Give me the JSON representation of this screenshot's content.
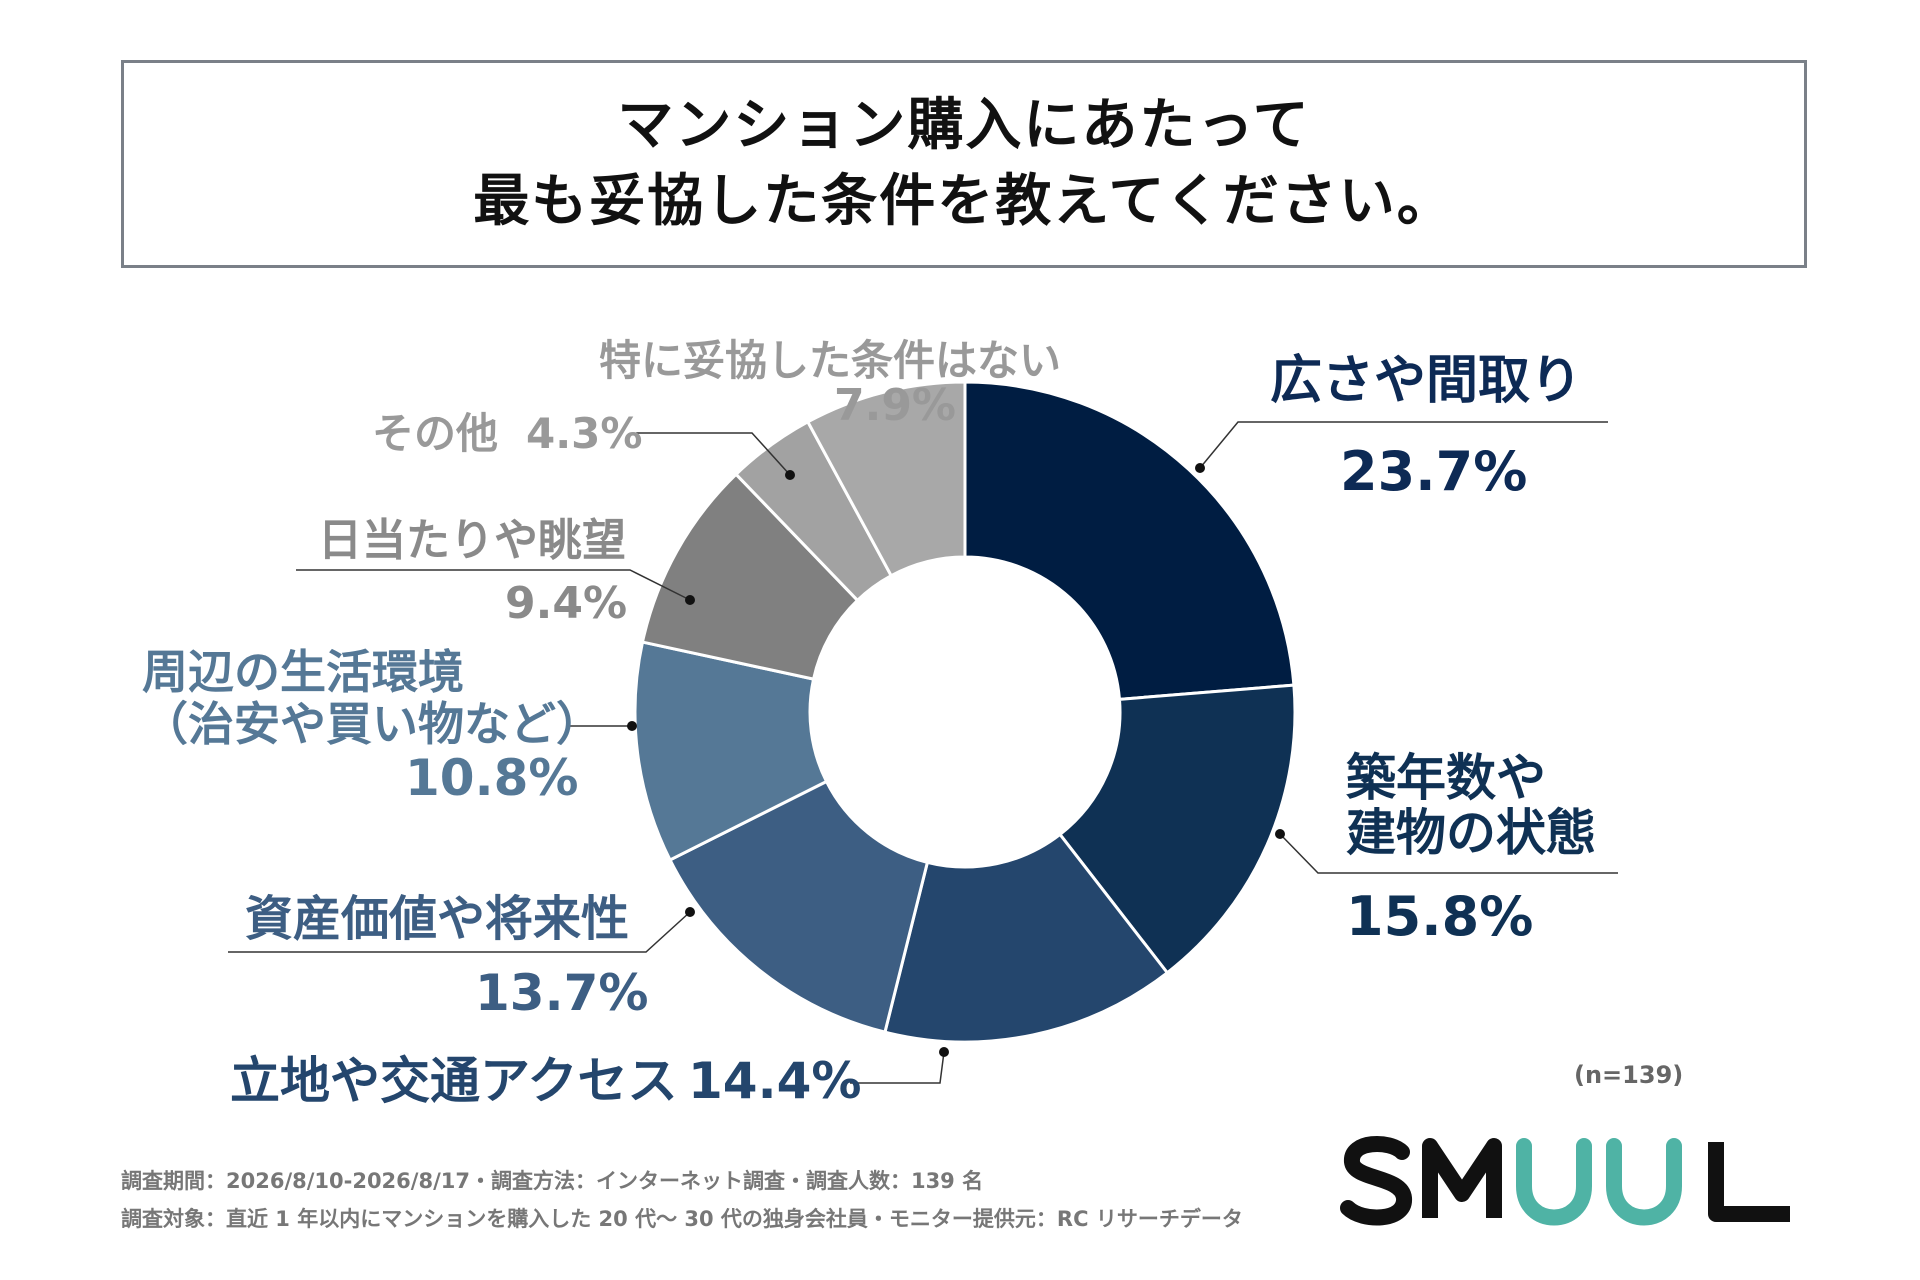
{
  "title": {
    "line1": "マンション購入にあたって",
    "line2": "最も妥協した条件を教えてください。"
  },
  "chart_data": {
    "type": "pie",
    "title": "マンション購入にあたって 最も妥協した条件を教えてください。",
    "unit": "%",
    "slices": [
      {
        "label": "広さや間取り",
        "label_lines": [
          "広さや間取り"
        ],
        "value": 23.7,
        "value_text": "23.7%",
        "color": "#001d42",
        "label_color": "#0d2a55"
      },
      {
        "label": "築年数や建物の状態",
        "label_lines": [
          "築年数や",
          "建物の状態"
        ],
        "value": 15.8,
        "value_text": "15.8%",
        "color": "#0f3154",
        "label_color": "#0f3154"
      },
      {
        "label": "立地や交通アクセス",
        "label_lines": [
          "立地や交通アクセス"
        ],
        "value": 14.4,
        "value_text": "14.4%",
        "color": "#24466d",
        "label_color": "#24466d"
      },
      {
        "label": "資産価値や将来性",
        "label_lines": [
          "資産価値や将来性"
        ],
        "value": 13.7,
        "value_text": "13.7%",
        "color": "#3d5e83",
        "label_color": "#3d5e83"
      },
      {
        "label": "周辺の生活環境（治安や買い物など）",
        "label_lines": [
          "周辺の生活環境",
          "（治安や買い物など）"
        ],
        "value": 10.8,
        "value_text": "10.8%",
        "color": "#557896",
        "label_color": "#557896"
      },
      {
        "label": "日当たりや眺望",
        "label_lines": [
          "日当たりや眺望"
        ],
        "value": 9.4,
        "value_text": "9.4%",
        "color": "#808080",
        "label_color": "#8a8a8a"
      },
      {
        "label": "その他",
        "label_lines": [
          "その他"
        ],
        "value": 4.3,
        "value_text": "4.3%",
        "color": "#a2a2a2",
        "label_color": "#999999"
      },
      {
        "label": "特に妥協した条件はない",
        "label_lines": [
          "特に妥協した条件はない"
        ],
        "value": 7.9,
        "value_text": "7.9%",
        "color": "#a8a8a8",
        "label_color": "#999999"
      }
    ]
  },
  "sample_size": "(n=139)",
  "footnotes": {
    "line1": "調査期間：2026/8/10-2026/8/17・調査方法：インターネット調査・調査人数：139 名",
    "line2": "調査対象：直近 1 年以内にマンションを購入した 20 代〜 30 代の独身会社員・モニター提供元：RC リサーチデータ"
  },
  "logo": {
    "text": "SMUUL",
    "colors": {
      "dark": "#111111",
      "teal": "#4fb3a5"
    }
  }
}
